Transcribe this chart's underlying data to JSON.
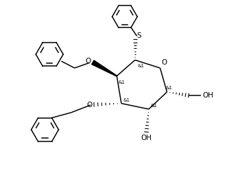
{
  "background": "#ffffff",
  "line_color": "#000000",
  "line_width": 1.1,
  "fig_width": 3.34,
  "fig_height": 2.68,
  "dpi": 100,
  "xlim": [
    0,
    10
  ],
  "ylim": [
    0,
    8
  ]
}
